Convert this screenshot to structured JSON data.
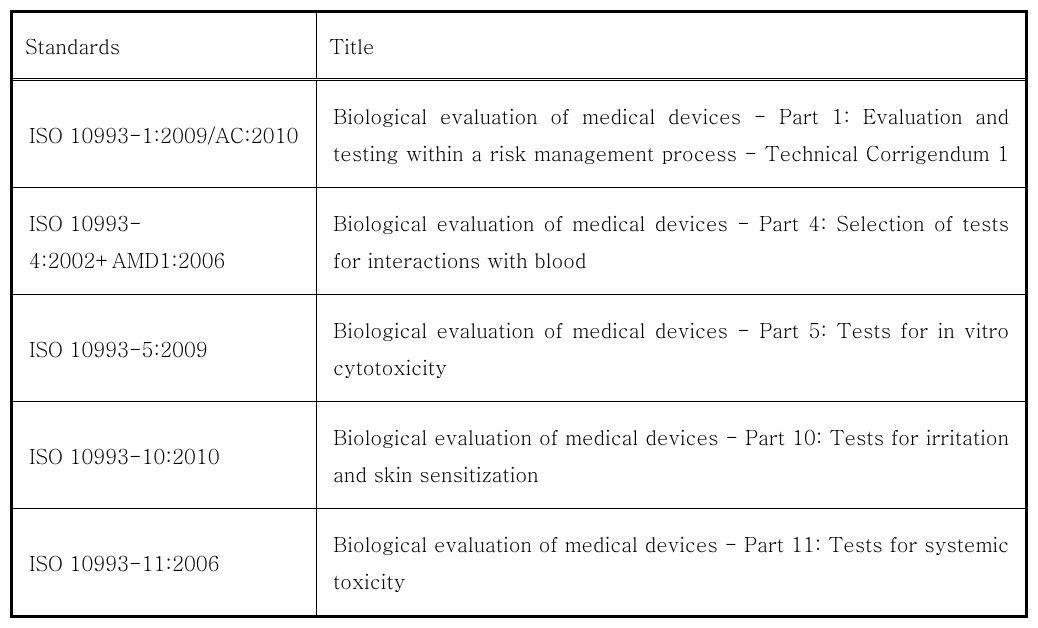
{
  "table": {
    "columns": [
      "Standards",
      "Title"
    ],
    "column_widths": [
      "30%",
      "70%"
    ],
    "rows": [
      {
        "standard": "ISO 10993-1:2009/AC:2010",
        "title": "Biological evaluation of medical devices - Part 1: Evaluation and testing within a risk management process - Technical Corrigendum 1",
        "title_justify": "full"
      },
      {
        "standard": "ISO 10993-4:2002+AMD1:2006",
        "title": "Biological evaluation of medical devices - Part 4: Selection of tests for interactions with blood",
        "title_justify": "left"
      },
      {
        "standard": "ISO 10993-5:2009",
        "title": "Biological evaluation of medical devices - Part 5: Tests for in vitro cytotoxicity",
        "title_justify": "left"
      },
      {
        "standard": "ISO 10993-10:2010",
        "title": "Biological evaluation of medical devices - Part 10: Tests for irritation and skin sensitization",
        "title_justify": "left"
      },
      {
        "standard": "ISO 10993-11:2006",
        "title": "Biological evaluation of medical devices - Part 11: Tests for systemic toxicity",
        "title_justify": "full"
      }
    ],
    "styling": {
      "outer_border_width": 3,
      "outer_border_color": "#000000",
      "header_bottom_border": "double",
      "cell_border_width": 1,
      "cell_border_color": "#000000",
      "font_family": "Batang, BatangChe, Times New Roman, serif",
      "font_size": 20,
      "line_height": 1.85,
      "background_color": "#ffffff",
      "header_padding": "18px 12px",
      "cell_padding": "16px 16px"
    }
  }
}
